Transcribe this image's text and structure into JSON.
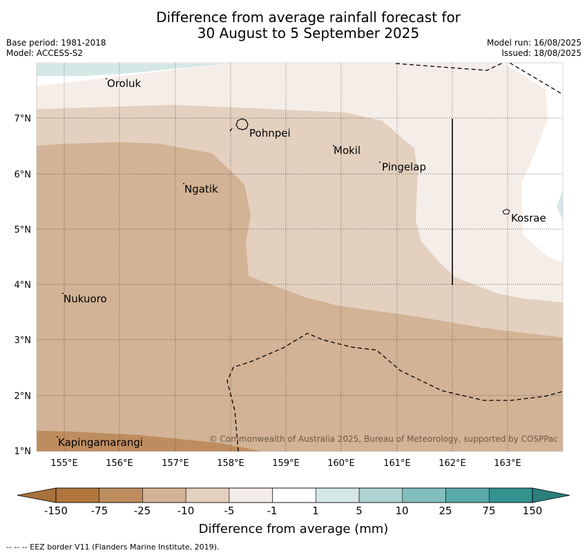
{
  "title": {
    "line1": "Difference from average rainfall forecast for",
    "line2": "30 August to 5 September 2025"
  },
  "meta": {
    "base_period": "Base period: 1981-2018",
    "model": "Model: ACCESS-S2",
    "model_run": "Model run: 16/08/2025",
    "issued": "Issued: 18/08/2025"
  },
  "axes": {
    "lon_ticks": [
      "155°E",
      "156°E",
      "157°E",
      "158°E",
      "159°E",
      "160°E",
      "161°E",
      "162°E",
      "163°E"
    ],
    "lat_ticks": [
      "7°N",
      "6°N",
      "5°N",
      "4°N",
      "3°N",
      "2°N",
      "1°N"
    ],
    "lon_range": [
      154.5,
      164.0
    ],
    "lat_range": [
      1.0,
      8.0
    ],
    "grid": true
  },
  "places": [
    {
      "name": "Oroluk"
    },
    {
      "name": "Pohnpei"
    },
    {
      "name": "Mokil"
    },
    {
      "name": "Pingelap"
    },
    {
      "name": "Ngatik"
    },
    {
      "name": "Kosrae"
    },
    {
      "name": "Nukuoro"
    },
    {
      "name": "Kapingamarangi"
    }
  ],
  "copyright": "© Commonwealth of Australia 2025, Bureau of Meteorology, supported by COSPPac",
  "colorbar": {
    "label": "Difference from average (mm)",
    "ticks": [
      "-150",
      "-75",
      "-25",
      "-10",
      "-5",
      "-1",
      "1",
      "5",
      "10",
      "25",
      "75",
      "150"
    ],
    "colors": [
      "#a8703a",
      "#b0763e",
      "#be8d5f",
      "#d2b395",
      "#e3d0bf",
      "#f5ede7",
      "#ffffff",
      "#d5e8e7",
      "#acd3d2",
      "#82bebc",
      "#59aaa8",
      "#34928f",
      "#2a7f7c"
    ]
  },
  "footer": "--  --  -- EEZ border V11 (Flanders Marine Institute, 2019)."
}
